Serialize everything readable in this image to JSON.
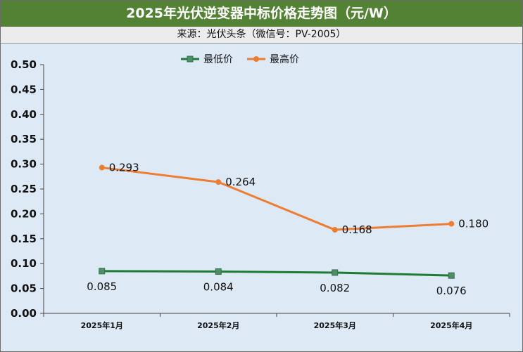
{
  "header": {
    "title": "2025年光伏逆变器中标价格走势图（元/W）",
    "source": "来源：光伏头条（微信号：PV-2005）"
  },
  "chart_data": {
    "type": "line",
    "categories": [
      "2025年1月",
      "2025年2月",
      "2025年3月",
      "2025年4月"
    ],
    "series": [
      {
        "name": "最低价",
        "values": [
          0.085,
          0.084,
          0.082,
          0.076
        ],
        "color": "#1e7b34",
        "marker": "square",
        "data_labels": [
          "0.085",
          "0.084",
          "0.082",
          "0.076"
        ]
      },
      {
        "name": "最高价",
        "values": [
          0.293,
          0.264,
          0.168,
          0.18
        ],
        "color": "#ed7d31",
        "marker": "circle",
        "data_labels": [
          "0.293",
          "0.264",
          "0.168",
          "0.180"
        ]
      }
    ],
    "ylim": [
      0,
      0.5
    ],
    "yticks": [
      "0.00",
      "0.05",
      "0.10",
      "0.15",
      "0.20",
      "0.25",
      "0.30",
      "0.35",
      "0.40",
      "0.45",
      "0.50"
    ],
    "legend": "top-center",
    "grid": false,
    "background": "#dde9f5"
  }
}
